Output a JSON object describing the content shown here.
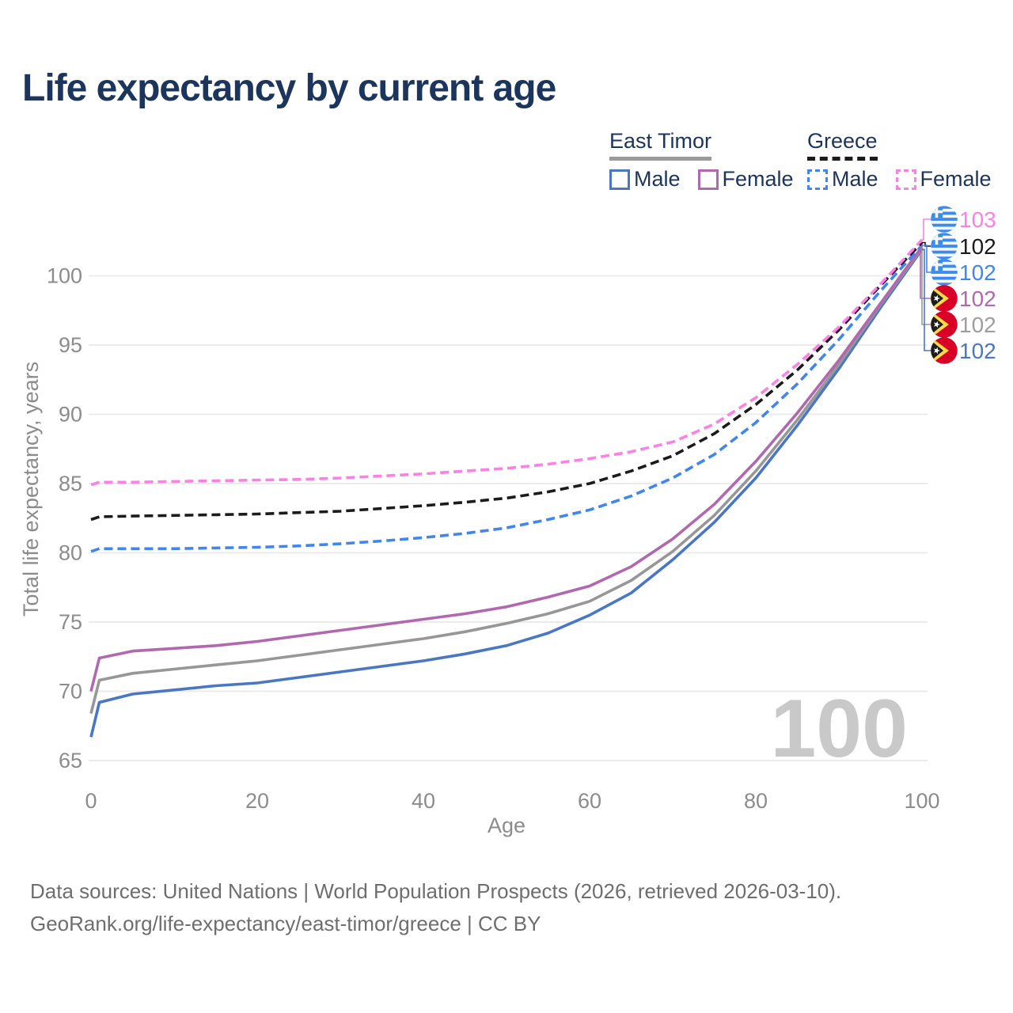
{
  "title": "Life expectancy by current age",
  "legend": {
    "groups": [
      {
        "name": "East Timor",
        "line_style": "solid",
        "underline_color": "#9a9a9a",
        "items": [
          {
            "label": "Male",
            "color": "#4a77c4"
          },
          {
            "label": "Female",
            "color": "#b168ae"
          }
        ]
      },
      {
        "name": "Greece",
        "line_style": "dashed",
        "underline_color": "#1b1b1b",
        "items": [
          {
            "label": "Male",
            "color": "#3f86f0"
          },
          {
            "label": "Female",
            "color": "#ff80e5"
          }
        ]
      }
    ]
  },
  "chart_data": {
    "type": "line",
    "title": "Life expectancy by current age",
    "xlabel": "Age",
    "ylabel": "Total life expectancy, years",
    "xlim": [
      0,
      100
    ],
    "ylim": [
      65,
      103.5
    ],
    "x_ticks": [
      0,
      20,
      40,
      60,
      80,
      100
    ],
    "y_ticks": [
      65,
      70,
      75,
      80,
      85,
      90,
      95,
      100
    ],
    "grid": "horizontal",
    "watermark": "100",
    "legend_position": "top-right",
    "x": [
      0,
      1,
      5,
      10,
      15,
      20,
      25,
      30,
      35,
      40,
      45,
      50,
      55,
      60,
      65,
      70,
      75,
      80,
      85,
      90,
      95,
      100
    ],
    "series": [
      {
        "name": "East Timor Male",
        "color": "#4a77c4",
        "dashed": false,
        "values": [
          66.7,
          69.2,
          69.8,
          70.1,
          70.4,
          70.6,
          71.0,
          71.4,
          71.8,
          72.2,
          72.7,
          73.3,
          74.2,
          75.5,
          77.1,
          79.5,
          82.2,
          85.4,
          89.2,
          93.3,
          97.7,
          101.9
        ]
      },
      {
        "name": "East Timor",
        "color": "#979797",
        "dashed": false,
        "values": [
          68.4,
          70.8,
          71.3,
          71.6,
          71.9,
          72.2,
          72.6,
          73.0,
          73.4,
          73.8,
          74.3,
          74.9,
          75.6,
          76.5,
          78.0,
          80.1,
          82.7,
          85.9,
          89.6,
          93.6,
          97.9,
          102.0
        ]
      },
      {
        "name": "East Timor Female",
        "color": "#b168ae",
        "dashed": false,
        "values": [
          70.0,
          72.4,
          72.9,
          73.1,
          73.3,
          73.6,
          74.0,
          74.4,
          74.8,
          75.2,
          75.6,
          76.1,
          76.8,
          77.6,
          79.0,
          81.0,
          83.5,
          86.6,
          90.1,
          93.9,
          98.0,
          102.1
        ]
      },
      {
        "name": "Greece Male",
        "color": "#3f86f0",
        "dashed": true,
        "values": [
          80.1,
          80.3,
          80.3,
          80.3,
          80.35,
          80.4,
          80.5,
          80.65,
          80.85,
          81.1,
          81.4,
          81.8,
          82.4,
          83.1,
          84.1,
          85.4,
          87.1,
          89.4,
          92.2,
          95.4,
          98.9,
          102.2
        ]
      },
      {
        "name": "Greece",
        "color": "#1b1b1b",
        "dashed": true,
        "values": [
          82.4,
          82.6,
          82.65,
          82.7,
          82.75,
          82.8,
          82.9,
          83.0,
          83.2,
          83.4,
          83.65,
          83.95,
          84.4,
          85.0,
          85.9,
          87.0,
          88.6,
          90.7,
          93.2,
          96.1,
          99.3,
          102.4
        ]
      },
      {
        "name": "Greece Female",
        "color": "#ff80e5",
        "dashed": true,
        "values": [
          84.9,
          85.1,
          85.1,
          85.15,
          85.2,
          85.25,
          85.3,
          85.4,
          85.55,
          85.7,
          85.9,
          86.1,
          86.4,
          86.8,
          87.3,
          88.0,
          89.3,
          91.2,
          93.6,
          96.3,
          99.4,
          102.6
        ]
      }
    ],
    "end_labels": [
      {
        "value": "103",
        "series": "Greece Female",
        "color": "#ff80e5",
        "flag": "greece"
      },
      {
        "value": "102",
        "series": "Greece",
        "color": "#1b1b1b",
        "flag": "greece"
      },
      {
        "value": "102",
        "series": "Greece Male",
        "color": "#3f86f0",
        "flag": "greece"
      },
      {
        "value": "102",
        "series": "East Timor Female",
        "color": "#b168ae",
        "flag": "east-timor"
      },
      {
        "value": "102",
        "series": "East Timor",
        "color": "#9e9e9e",
        "flag": "east-timor"
      },
      {
        "value": "102",
        "series": "East Timor Male",
        "color": "#4a77c4",
        "flag": "east-timor"
      }
    ]
  },
  "footer": {
    "line1": "Data sources: United Nations | World Population Prospects (2026, retrieved 2026-03-10).",
    "line2": "GeoRank.org/life-expectancy/east-timor/greece | CC BY"
  }
}
